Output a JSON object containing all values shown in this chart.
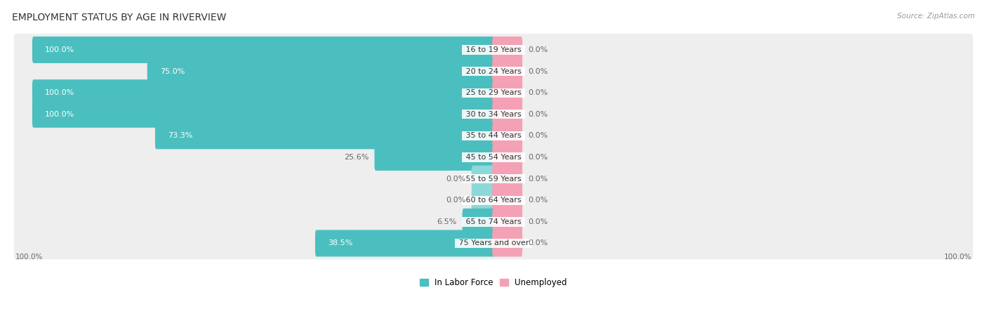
{
  "title": "EMPLOYMENT STATUS BY AGE IN RIVERVIEW",
  "source": "Source: ZipAtlas.com",
  "categories": [
    "16 to 19 Years",
    "20 to 24 Years",
    "25 to 29 Years",
    "30 to 34 Years",
    "35 to 44 Years",
    "45 to 54 Years",
    "55 to 59 Years",
    "60 to 64 Years",
    "65 to 74 Years",
    "75 Years and over"
  ],
  "labor_force": [
    100.0,
    75.0,
    100.0,
    100.0,
    73.3,
    25.6,
    0.0,
    0.0,
    6.5,
    38.5
  ],
  "unemployed": [
    0.0,
    0.0,
    0.0,
    0.0,
    0.0,
    0.0,
    0.0,
    0.0,
    0.0,
    0.0
  ],
  "labor_force_color": "#4bbfbf",
  "labor_force_color_light": "#8dd8d8",
  "unemployed_color": "#f4a0b5",
  "row_bg_color": "#eeeeee",
  "label_color_inside": "#ffffff",
  "label_color_outside": "#666666",
  "title_fontsize": 10,
  "label_fontsize": 8,
  "category_fontsize": 8,
  "legend_fontsize": 8.5,
  "axis_label_fontsize": 7.5,
  "left_axis_label": "100.0%",
  "right_axis_label": "100.0%",
  "legend_items": [
    "In Labor Force",
    "Unemployed"
  ],
  "legend_colors": [
    "#4bbfbf",
    "#f4a0b5"
  ]
}
